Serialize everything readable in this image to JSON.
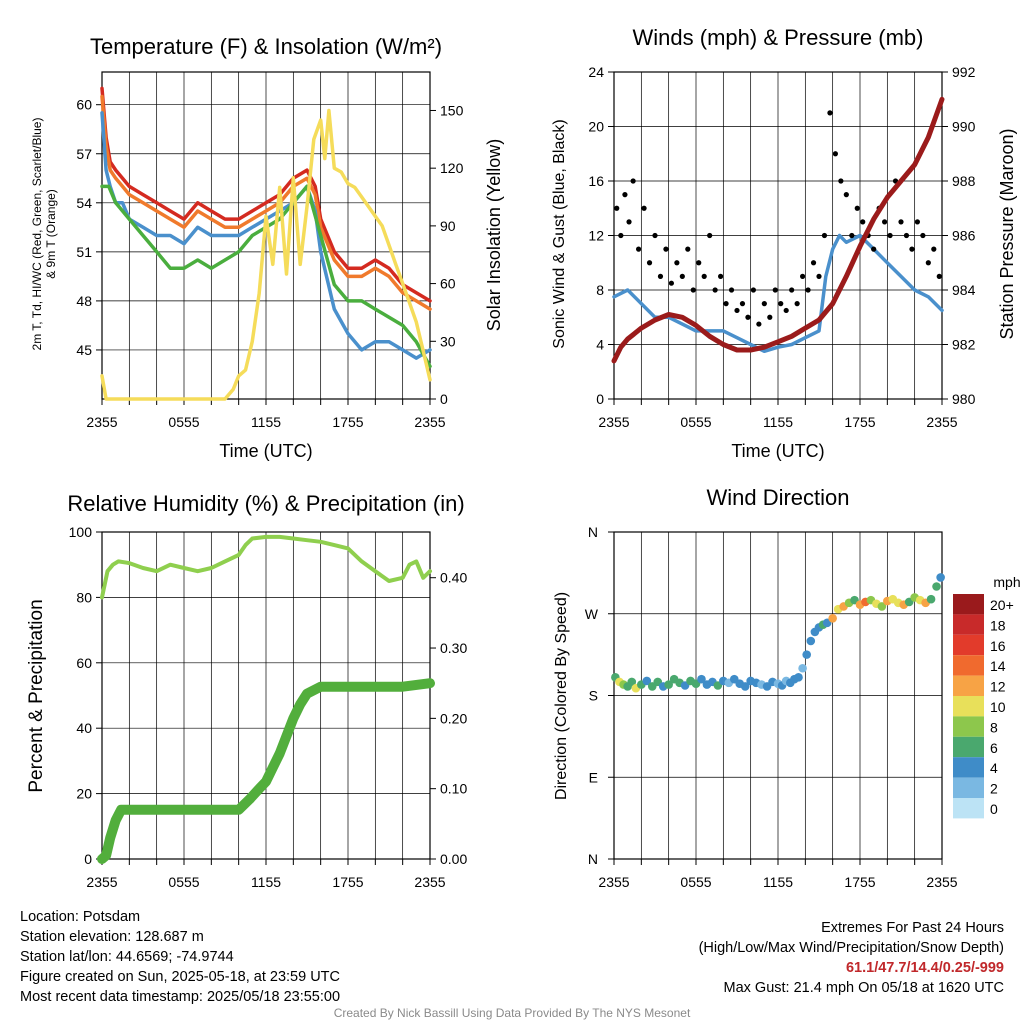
{
  "panels": {
    "temp": {
      "title": "Temperature (F) & Insolation (W/m²)",
      "ylabel_left": "2m T, Td, HI/WC (Red, Green, Scarlet/Blue)",
      "ylabel_left2": "& 9m T (Orange)",
      "ylabel_right": "Solar Insolation (Yellow)",
      "xlabel": "Time (UTC)"
    },
    "winds": {
      "title": "Winds (mph) & Pressure (mb)",
      "ylabel_left": "Sonic Wind & Gust (Blue, Black)",
      "ylabel_right": "Station Pressure (Maroon)",
      "xlabel": "Time (UTC)"
    },
    "rh": {
      "title": "Relative Humidity (%) & Precipitation (in)",
      "ylabel_left": "Percent & Precipitation"
    },
    "dir": {
      "title": "Wind Direction",
      "ylabel_left": "Direction (Colored By Speed)",
      "legend_title": "mph"
    }
  },
  "chart_data": [
    {
      "type": "line",
      "title": "Temperature (F) & Insolation (W/m²)",
      "x_ticks": [
        "2355",
        "0555",
        "1155",
        "1755",
        "2355"
      ],
      "xlim_hours": [
        0,
        24
      ],
      "ylim": [
        42,
        62
      ],
      "y_ticks": [
        45,
        48,
        51,
        54,
        57,
        60
      ],
      "y2lim": [
        0,
        170
      ],
      "y2_ticks": [
        0,
        30,
        60,
        90,
        120,
        150
      ],
      "series": [
        {
          "name": "2m T",
          "color": "#d42a20",
          "axis": "y",
          "x": [
            0,
            0.3,
            0.6,
            1,
            1.5,
            2,
            3,
            4,
            5,
            6,
            7,
            8,
            9,
            10,
            11,
            12,
            13,
            14,
            15,
            15.6,
            16,
            17,
            18,
            19,
            20,
            21,
            22,
            23,
            24
          ],
          "y": [
            61,
            58,
            56.5,
            56,
            55.5,
            55,
            54.5,
            54,
            53.5,
            53,
            54,
            53.5,
            53,
            53,
            53.5,
            54,
            54.5,
            55.5,
            56,
            55,
            53,
            51,
            50,
            50,
            50.5,
            50,
            49,
            48.5,
            48
          ]
        },
        {
          "name": "9m T",
          "color": "#f07a2c",
          "axis": "y",
          "x": [
            0,
            0.3,
            0.6,
            1,
            1.5,
            2,
            3,
            4,
            5,
            6,
            7,
            8,
            9,
            10,
            11,
            12,
            13,
            14,
            15,
            15.6,
            16,
            17,
            18,
            19,
            20,
            21,
            22,
            23,
            24
          ],
          "y": [
            60.5,
            57.5,
            56,
            55.5,
            55,
            54.5,
            54,
            53.5,
            53,
            52.5,
            53.5,
            53,
            52.5,
            52.5,
            53,
            53.5,
            54,
            55,
            55.5,
            54.5,
            52.5,
            50.5,
            49.5,
            49.5,
            50,
            49.5,
            48.5,
            48,
            47.5
          ]
        },
        {
          "name": "HI/WC",
          "color": "#4a90cc",
          "axis": "y",
          "x": [
            0,
            0.3,
            0.6,
            1,
            1.5,
            2,
            3,
            4,
            5,
            6,
            7,
            8,
            9,
            10,
            11,
            12,
            13,
            14,
            15,
            15.6,
            16,
            17,
            18,
            19,
            20,
            21,
            22,
            23,
            24
          ],
          "y": [
            59.5,
            56,
            55,
            54,
            54,
            53,
            52.5,
            52,
            52,
            51.5,
            52.5,
            52,
            52,
            52,
            52.5,
            53,
            53.5,
            54,
            55,
            53.5,
            51,
            47.5,
            46,
            45,
            45.5,
            45.5,
            45,
            44.5,
            45
          ]
        },
        {
          "name": "Td",
          "color": "#4aae3e",
          "axis": "y",
          "x": [
            0,
            0.5,
            1,
            2,
            3,
            4,
            5,
            6,
            7,
            8,
            9,
            10,
            11,
            12,
            13,
            14,
            15,
            16,
            17,
            18,
            19,
            20,
            21,
            22,
            23,
            24
          ],
          "y": [
            55,
            55,
            54,
            53,
            52,
            51,
            50,
            50,
            50.5,
            50,
            50.5,
            51,
            52,
            52.5,
            53,
            54,
            55,
            52,
            49,
            48,
            48,
            47.5,
            47,
            46.5,
            45.5,
            44
          ]
        },
        {
          "name": "Solar",
          "color": "#f5dc5a",
          "axis": "y2",
          "x": [
            0,
            0.3,
            1,
            3,
            5,
            7,
            9,
            9.6,
            10,
            10.5,
            11,
            11.5,
            12,
            12.5,
            13,
            13.5,
            14,
            14.5,
            15,
            15.5,
            16,
            16.3,
            16.6,
            17,
            17.5,
            18,
            18.5,
            19,
            19.5,
            20,
            20.5,
            21,
            21.5,
            22,
            22.5,
            23,
            23.5,
            24
          ],
          "y": [
            12,
            0,
            0,
            0,
            0,
            0,
            0,
            5,
            12,
            15,
            30,
            55,
            95,
            70,
            110,
            65,
            115,
            70,
            100,
            135,
            145,
            125,
            150,
            120,
            118,
            112,
            110,
            105,
            100,
            95,
            90,
            80,
            70,
            60,
            50,
            40,
            25,
            10
          ]
        }
      ]
    },
    {
      "type": "line",
      "title": "Winds (mph) & Pressure (mb)",
      "x_ticks": [
        "2355",
        "0555",
        "1155",
        "1755",
        "2355"
      ],
      "xlim_hours": [
        0,
        24
      ],
      "ylim": [
        0,
        24
      ],
      "y_ticks": [
        0,
        4,
        8,
        12,
        16,
        20,
        24
      ],
      "y2lim": [
        980,
        992
      ],
      "y2_ticks": [
        980,
        982,
        984,
        986,
        988,
        990,
        992
      ],
      "series": [
        {
          "name": "Sonic Wind",
          "color": "#4a90cc",
          "axis": "y",
          "x": [
            0,
            1,
            2,
            3,
            4,
            5,
            6,
            7,
            8,
            9,
            10,
            11,
            12,
            13,
            14,
            15,
            15.5,
            16,
            16.5,
            17,
            18,
            19,
            20,
            21,
            22,
            23,
            24
          ],
          "y": [
            7.5,
            8,
            7,
            6,
            6,
            5.5,
            5,
            5,
            5,
            4.5,
            4,
            3.5,
            3.8,
            4,
            4.5,
            5,
            9,
            11,
            12,
            11.5,
            12,
            11,
            10,
            9,
            8,
            7.5,
            6.5
          ]
        },
        {
          "name": "Gust",
          "color": "#000000",
          "axis": "y",
          "type": "scatter",
          "x": [
            0.2,
            0.5,
            0.8,
            1.1,
            1.4,
            1.8,
            2.2,
            2.6,
            3.0,
            3.4,
            3.8,
            4.2,
            4.6,
            5.0,
            5.4,
            5.8,
            6.2,
            6.6,
            7.0,
            7.4,
            7.8,
            8.2,
            8.6,
            9.0,
            9.4,
            9.8,
            10.2,
            10.6,
            11.0,
            11.4,
            11.8,
            12.2,
            12.6,
            13.0,
            13.4,
            13.8,
            14.2,
            14.6,
            15.0,
            15.4,
            15.8,
            16.2,
            16.6,
            17.0,
            17.4,
            17.8,
            18.2,
            18.6,
            19.0,
            19.4,
            19.8,
            20.2,
            20.6,
            21.0,
            21.4,
            21.8,
            22.2,
            22.6,
            23.0,
            23.4,
            23.8
          ],
          "y": [
            14,
            12,
            15,
            13,
            16,
            11,
            14,
            10,
            12,
            9,
            11,
            8.5,
            10,
            9,
            11,
            8,
            10,
            9,
            12,
            8,
            9,
            7,
            8,
            6.5,
            7,
            6,
            8,
            5.5,
            7,
            6,
            8,
            7,
            6.5,
            8,
            7,
            9,
            8,
            10,
            9,
            12,
            21,
            18,
            16,
            15,
            12,
            14,
            13,
            12,
            11,
            14,
            13,
            12,
            16,
            13,
            12,
            11,
            13,
            12,
            10,
            11,
            9
          ]
        },
        {
          "name": "Station Pressure",
          "color": "#9b1b1b",
          "axis": "y2",
          "x": [
            0,
            0.5,
            1,
            1.5,
            2,
            3,
            4,
            5,
            6,
            7,
            8,
            9,
            10,
            11,
            12,
            13,
            14,
            15,
            16,
            17,
            18,
            19,
            20,
            21,
            22,
            23,
            24
          ],
          "y": [
            981.4,
            981.9,
            982.2,
            982.4,
            982.6,
            982.9,
            983.1,
            983.0,
            982.7,
            982.3,
            982.0,
            981.8,
            981.8,
            981.9,
            982.1,
            982.3,
            982.6,
            982.9,
            983.5,
            984.5,
            985.6,
            986.6,
            987.4,
            988.0,
            988.6,
            989.6,
            991.0
          ]
        }
      ]
    },
    {
      "type": "line",
      "title": "Relative Humidity (%) & Precipitation (in)",
      "x_ticks": [
        "2355",
        "0555",
        "1155",
        "1755",
        "2355"
      ],
      "xlim_hours": [
        0,
        24
      ],
      "ylim": [
        0,
        100
      ],
      "y_ticks": [
        0,
        20,
        40,
        60,
        80,
        100
      ],
      "y2lim": [
        0,
        0.465
      ],
      "y2_ticks": [
        "0.00",
        "0.10",
        "0.20",
        "0.30",
        "0.40"
      ],
      "series": [
        {
          "name": "Relative Humidity",
          "color": "#8fcf4e",
          "axis": "y",
          "x": [
            0,
            0.4,
            0.8,
            1.2,
            2,
            3,
            4,
            5,
            6,
            7,
            8,
            9,
            10,
            10.5,
            11,
            12,
            13,
            14,
            15,
            16,
            17,
            18,
            19,
            20,
            21,
            22,
            22.5,
            23,
            23.5,
            24
          ],
          "y": [
            80,
            88,
            90,
            91,
            90.5,
            89,
            88,
            90,
            89,
            88,
            89,
            91,
            93,
            96,
            98,
            98.5,
            98.5,
            98,
            97.5,
            97,
            96,
            95,
            91,
            88,
            85,
            86,
            90,
            91,
            86,
            88
          ]
        },
        {
          "name": "Precipitation",
          "color": "#52ae3c",
          "axis": "y2",
          "x": [
            0,
            0.3,
            0.6,
            1,
            1.4,
            3,
            5,
            7,
            9,
            10,
            10.8,
            11.5,
            12,
            12.5,
            13,
            14,
            14.5,
            15,
            16,
            18,
            20,
            22,
            24
          ],
          "y": [
            0,
            0.005,
            0.03,
            0.055,
            0.07,
            0.07,
            0.07,
            0.07,
            0.07,
            0.07,
            0.085,
            0.1,
            0.11,
            0.13,
            0.15,
            0.2,
            0.22,
            0.235,
            0.245,
            0.245,
            0.245,
            0.245,
            0.25
          ]
        }
      ]
    },
    {
      "type": "scatter",
      "title": "Wind Direction",
      "x_ticks": [
        "2355",
        "0555",
        "1155",
        "1755",
        "2355"
      ],
      "xlim_hours": [
        0,
        24
      ],
      "ylim": [
        0,
        360
      ],
      "y_tick_labels": [
        "N",
        "E",
        "S",
        "W",
        "N"
      ],
      "y_tick_degrees": [
        0,
        90,
        180,
        270,
        360
      ],
      "legend": {
        "title": "mph",
        "labels": [
          "20+",
          "18",
          "16",
          "14",
          "12",
          "10",
          "8",
          "6",
          "4",
          "2",
          "0"
        ],
        "colors": [
          "#9a1a1c",
          "#c82a2a",
          "#e23b2b",
          "#f06a2e",
          "#f7a345",
          "#e8e05a",
          "#8dc74c",
          "#4aa86e",
          "#3f8cc8",
          "#7ab8e2",
          "#bce3f5"
        ]
      },
      "series": [
        {
          "name": "Direction",
          "x": [
            0.1,
            0.4,
            0.7,
            1.0,
            1.3,
            1.6,
            2.0,
            2.4,
            2.8,
            3.2,
            3.6,
            4.0,
            4.4,
            4.8,
            5.2,
            5.6,
            6.0,
            6.4,
            6.8,
            7.2,
            7.6,
            8.0,
            8.4,
            8.8,
            9.2,
            9.6,
            10.0,
            10.4,
            10.8,
            11.2,
            11.6,
            12.0,
            12.3,
            12.6,
            12.9,
            13.2,
            13.5,
            13.8,
            14.1,
            14.4,
            14.7,
            15.0,
            15.3,
            15.6,
            16.0,
            16.4,
            16.8,
            17.2,
            17.6,
            18.0,
            18.4,
            18.8,
            19.2,
            19.6,
            20.0,
            20.4,
            20.8,
            21.2,
            21.6,
            22.0,
            22.4,
            22.8,
            23.2,
            23.6,
            23.9
          ],
          "y": [
            200,
            195,
            192,
            190,
            195,
            188,
            192,
            196,
            190,
            195,
            190,
            192,
            198,
            194,
            191,
            196,
            193,
            198,
            192,
            195,
            191,
            196,
            194,
            198,
            193,
            190,
            196,
            194,
            192,
            190,
            195,
            193,
            191,
            196,
            194,
            198,
            200,
            210,
            225,
            240,
            250,
            255,
            258,
            260,
            265,
            275,
            278,
            282,
            285,
            280,
            283,
            285,
            281,
            278,
            284,
            286,
            282,
            280,
            283,
            288,
            285,
            282,
            286,
            300,
            310
          ],
          "speed": [
            6,
            10,
            8,
            5,
            6,
            9,
            5,
            4,
            6,
            5,
            4,
            5,
            6,
            5,
            4,
            6,
            5,
            3,
            4,
            3,
            5,
            4,
            2,
            4,
            3,
            4,
            4,
            3,
            2,
            3,
            4,
            2,
            3,
            2,
            3,
            4,
            3,
            2,
            3,
            4,
            3,
            4,
            5,
            4,
            11,
            10,
            12,
            8,
            6,
            11,
            13,
            7,
            10,
            8,
            12,
            9,
            10,
            11,
            6,
            8,
            10,
            12,
            6,
            5,
            4
          ]
        }
      ]
    }
  ],
  "footer": {
    "location": "Location: Potsdam",
    "elevation": "Station elevation: 128.687 m",
    "latlon": "Station lat/lon: 44.6569; -74.9744",
    "created": "Figure created on Sun, 2025-05-18, at 23:59 UTC",
    "recent": "Most recent data timestamp: 2025/05/18 23:55:00",
    "extremes_title": "Extremes For Past 24 Hours",
    "extremes_sub": "(High/Low/Max Wind/Precipitation/Snow Depth)",
    "extremes_values": "61.1/47.7/14.4/0.25/-999",
    "max_gust": "Max Gust: 21.4 mph On 05/18 at 1620 UTC",
    "credit": "Created By Nick Bassill Using Data Provided By The NYS Mesonet"
  }
}
